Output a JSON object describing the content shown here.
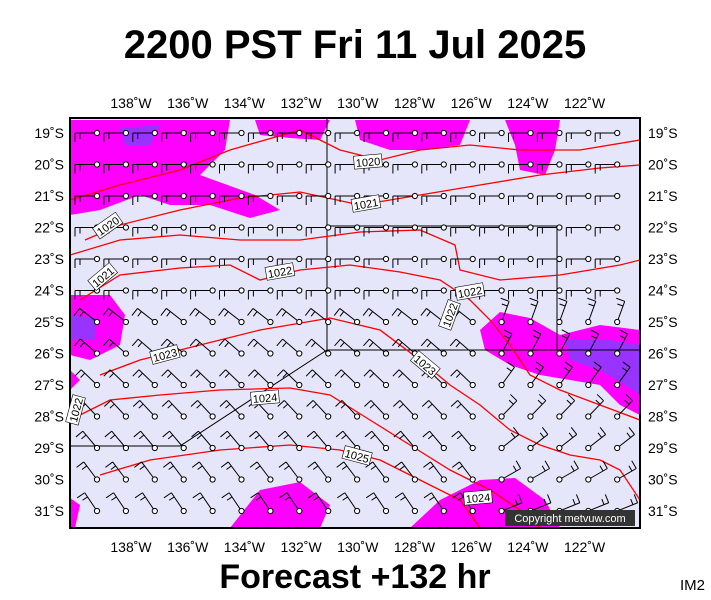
{
  "header": {
    "title": "2200 PST Fri 11 Jul 2025"
  },
  "map": {
    "longitude_labels": [
      "138˚W",
      "136˚W",
      "134˚W",
      "132˚W",
      "130˚W",
      "128˚W",
      "126˚W",
      "124˚W",
      "122˚W"
    ],
    "latitude_labels": [
      "19˚S",
      "20˚S",
      "21˚S",
      "22˚S",
      "23˚S",
      "24˚S",
      "25˚S",
      "26˚S",
      "27˚S",
      "28˚S",
      "29˚S",
      "30˚S",
      "31˚S"
    ],
    "isobar_labels": [
      "1020",
      "1021",
      "1020",
      "1021",
      "1022",
      "1022",
      "1022",
      "1023",
      "1023",
      "1024",
      "1025",
      "1024",
      "1022"
    ],
    "copyright": "Copyright metvuw.com"
  },
  "footer": {
    "forecast": "Forecast +132 hr",
    "image_id": "IM2"
  }
}
